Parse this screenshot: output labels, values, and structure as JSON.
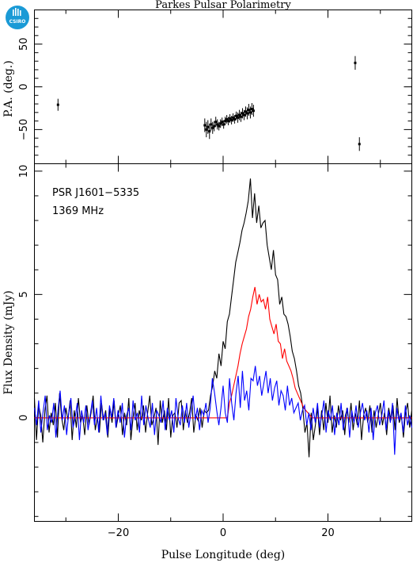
{
  "title": "Parkes Pulsar Polarimetry",
  "logo": {
    "text": "CSIRO",
    "color": "#1a9ad6"
  },
  "colors": {
    "total_intensity": "#000000",
    "linear": "#ff0000",
    "circular": "#0000ff",
    "frame": "#000000"
  },
  "chart_data": [
    {
      "type": "scatter",
      "ylabel": "P.A. (deg.)",
      "xlim": [
        -36,
        36
      ],
      "ylim": [
        -90,
        90
      ],
      "yticks": [
        -50,
        0,
        50
      ],
      "ytick_labels": [
        "−50",
        "0",
        "50"
      ],
      "xticks": [
        -20,
        0,
        20
      ],
      "points": [
        {
          "x": -31.5,
          "y": -21,
          "err": 7
        },
        {
          "x": -3.5,
          "y": -45,
          "err": 8
        },
        {
          "x": -3.2,
          "y": -50,
          "err": 9
        },
        {
          "x": -2.9,
          "y": -47,
          "err": 8
        },
        {
          "x": -2.6,
          "y": -52,
          "err": 9
        },
        {
          "x": -2.3,
          "y": -44,
          "err": 7
        },
        {
          "x": -2.0,
          "y": -48,
          "err": 7
        },
        {
          "x": -1.7,
          "y": -46,
          "err": 6
        },
        {
          "x": -1.4,
          "y": -41,
          "err": 6
        },
        {
          "x": -1.1,
          "y": -44,
          "err": 6
        },
        {
          "x": -0.8,
          "y": -46,
          "err": 5
        },
        {
          "x": -0.5,
          "y": -43,
          "err": 5
        },
        {
          "x": -0.2,
          "y": -41,
          "err": 5
        },
        {
          "x": 0.1,
          "y": -44,
          "err": 5
        },
        {
          "x": 0.4,
          "y": -40,
          "err": 5
        },
        {
          "x": 0.7,
          "y": -38,
          "err": 5
        },
        {
          "x": 1.0,
          "y": -40,
          "err": 5
        },
        {
          "x": 1.3,
          "y": -37,
          "err": 5
        },
        {
          "x": 1.6,
          "y": -39,
          "err": 5
        },
        {
          "x": 1.9,
          "y": -36,
          "err": 5
        },
        {
          "x": 2.2,
          "y": -38,
          "err": 5
        },
        {
          "x": 2.5,
          "y": -34,
          "err": 5
        },
        {
          "x": 2.8,
          "y": -36,
          "err": 6
        },
        {
          "x": 3.1,
          "y": -33,
          "err": 6
        },
        {
          "x": 3.4,
          "y": -35,
          "err": 6
        },
        {
          "x": 3.7,
          "y": -31,
          "err": 6
        },
        {
          "x": 4.0,
          "y": -33,
          "err": 6
        },
        {
          "x": 4.3,
          "y": -29,
          "err": 6
        },
        {
          "x": 4.6,
          "y": -31,
          "err": 7
        },
        {
          "x": 4.9,
          "y": -27,
          "err": 7
        },
        {
          "x": 5.2,
          "y": -30,
          "err": 7
        },
        {
          "x": 5.5,
          "y": -26,
          "err": 7
        },
        {
          "x": 5.8,
          "y": -28,
          "err": 7
        },
        {
          "x": 25.2,
          "y": 28,
          "err": 8
        },
        {
          "x": 26.0,
          "y": -67,
          "err": 8
        }
      ]
    },
    {
      "type": "line",
      "xlabel": "Pulse Longitude (deg)",
      "ylabel": "Flux Density (mJy)",
      "xlim": [
        -36,
        36
      ],
      "ylim": [
        -4.2,
        10.3
      ],
      "xticks": [
        -20,
        0,
        20
      ],
      "xtick_labels": [
        "−20",
        "0",
        "20"
      ],
      "yticks": [
        0,
        5,
        10
      ],
      "ytick_labels": [
        "0",
        "5",
        "10"
      ],
      "annotations": [
        "PSR J1601−5335",
        "1369 MHz"
      ],
      "series": [
        {
          "key": "total_intensity",
          "values": [
            0.8,
            -0.9,
            0.5,
            0.1,
            -1.0,
            0.3,
            0.9,
            -0.6,
            0.2,
            -0.3,
            0.6,
            -0.8,
            1.0,
            0.0,
            -0.5,
            0.4,
            -0.1,
            0.7,
            -0.9,
            0.3,
            -0.4,
            0.8,
            -0.2,
            0.1,
            -0.7,
            0.5,
            -0.3,
            0.2,
            0.9,
            -0.5,
            0.0,
            -0.6,
            0.6,
            -0.1,
            0.3,
            -0.8,
            0.4,
            -0.2,
            0.7,
            -0.4,
            0.1,
            0.5,
            -0.7,
            0.2,
            -0.3,
            0.8,
            -0.9,
            0.0,
            0.6,
            -0.5,
            0.3,
            -0.1,
            0.5,
            -0.6,
            0.2,
            0.9,
            -0.3,
            0.0,
            0.4,
            -1.1,
            0.7,
            -0.2,
            0.3,
            -0.5,
            0.8,
            -0.8,
            0.1,
            0.2,
            -0.4,
            0.6,
            0.7,
            -0.5,
            0.3,
            -0.2,
            0.2,
            0.8,
            -0.6,
            0.1,
            -0.1,
            0.4,
            -0.4,
            0.3,
            0.2,
            0.3,
            0.9,
            1.3,
            1.9,
            1.6,
            2.6,
            2.1,
            3.1,
            2.8,
            3.9,
            4.2,
            4.9,
            5.6,
            6.3,
            6.7,
            7.1,
            7.6,
            7.9,
            8.3,
            8.8,
            9.7,
            8.1,
            9.1,
            7.9,
            8.6,
            7.7,
            7.9,
            8.0,
            7.0,
            6.5,
            6.0,
            6.8,
            5.8,
            5.6,
            4.6,
            4.9,
            4.2,
            4.1,
            3.8,
            3.3,
            2.7,
            2.4,
            1.9,
            1.3,
            1.0,
            0.4,
            -0.6,
            -0.2,
            -1.6,
            0.2,
            -0.9,
            -0.3,
            0.4,
            -0.7,
            0.3,
            -0.5,
            0.6,
            -0.2,
            0.9,
            -0.6,
            0.1,
            -0.4,
            0.5,
            -0.1,
            0.3,
            -0.7,
            0.4,
            -0.2,
            0.6,
            -0.5,
            0.2,
            -0.3,
            0.7,
            -0.9,
            0.1,
            0.4,
            -0.2,
            0.5,
            -0.6,
            0.3,
            -0.4,
            0.1,
            0.6,
            -0.3,
            0.2,
            -0.7,
            0.4,
            -0.1,
            0.5,
            -0.5,
            0.8,
            -0.2,
            0.1,
            -0.8,
            0.2,
            0.6,
            -0.4,
            0.3
          ]
        },
        {
          "key": "linear",
          "values": [
            0.0,
            0.0,
            0.0,
            0.0,
            0.0,
            0.0,
            0.0,
            0.0,
            0.0,
            0.0,
            0.0,
            0.0,
            0.0,
            0.0,
            0.0,
            0.0,
            0.0,
            0.0,
            0.0,
            0.0,
            0.0,
            0.0,
            0.0,
            0.0,
            0.0,
            0.0,
            0.0,
            0.0,
            0.0,
            0.0,
            0.0,
            0.0,
            0.0,
            0.0,
            0.0,
            0.0,
            0.0,
            0.0,
            0.0,
            0.0,
            0.0,
            0.0,
            0.0,
            0.0,
            0.0,
            0.0,
            0.0,
            0.0,
            0.0,
            0.0,
            0.0,
            0.0,
            0.0,
            0.0,
            0.0,
            0.0,
            0.0,
            0.0,
            0.0,
            0.0,
            0.0,
            0.0,
            0.0,
            0.0,
            0.0,
            0.0,
            0.0,
            0.0,
            0.0,
            0.0,
            0.0,
            0.0,
            0.0,
            0.0,
            0.0,
            0.0,
            0.0,
            0.0,
            0.0,
            0.0,
            0.0,
            0.0,
            0.0,
            0.0,
            0.0,
            0.0,
            0.0,
            0.0,
            0.0,
            0.0,
            0.0,
            0.0,
            0.6,
            0.9,
            1.3,
            1.7,
            2.1,
            2.6,
            3.0,
            3.3,
            3.6,
            4.1,
            4.4,
            4.9,
            5.3,
            4.6,
            5.0,
            4.7,
            4.8,
            4.4,
            4.9,
            4.0,
            3.7,
            3.4,
            3.8,
            3.1,
            3.0,
            2.4,
            2.8,
            2.3,
            2.1,
            1.9,
            1.6,
            1.2,
            1.0,
            0.8,
            0.6,
            0.4,
            0.3,
            0.2,
            0.1,
            0.0,
            0.0,
            0.0,
            0.0,
            0.0,
            0.0,
            0.0,
            0.0,
            0.0,
            0.0,
            0.0,
            0.0,
            0.0,
            0.0,
            0.0,
            0.0,
            0.0,
            0.0,
            0.0,
            0.0,
            0.0,
            0.0,
            0.0,
            0.0,
            0.0,
            0.0,
            0.0,
            0.0,
            0.0,
            0.0,
            0.0,
            0.0,
            0.0,
            0.0,
            0.0,
            0.0,
            0.0,
            0.0,
            0.0,
            0.0,
            0.0,
            0.0,
            0.0,
            0.0,
            0.0,
            0.0,
            0.0,
            0.0
          ]
        },
        {
          "key": "circular",
          "values": [
            0.4,
            -0.3,
            0.7,
            -0.6,
            0.2,
            0.9,
            -0.5,
            0.1,
            -0.2,
            0.6,
            -0.8,
            0.3,
            1.1,
            -0.1,
            0.5,
            -0.7,
            0.2,
            0.8,
            -0.4,
            0.0,
            0.6,
            -0.9,
            0.3,
            -0.2,
            0.5,
            -0.5,
            0.1,
            0.7,
            -0.3,
            0.4,
            -0.6,
            0.9,
            -0.1,
            0.2,
            -0.7,
            0.5,
            0.0,
            0.8,
            -0.4,
            0.3,
            -0.2,
            0.6,
            -0.8,
            0.1,
            0.4,
            -0.5,
            0.7,
            -0.1,
            0.2,
            -0.6,
            0.9,
            -0.3,
            0.5,
            0.0,
            -0.4,
            0.6,
            -0.7,
            0.3,
            0.1,
            -0.2,
            0.7,
            -0.5,
            0.4,
            -0.1,
            0.3,
            -0.6,
            0.8,
            0.0,
            -0.3,
            0.5,
            -0.2,
            0.6,
            -0.4,
            0.2,
            0.9,
            -0.1,
            0.4,
            -0.5,
            0.3,
            0.1,
            0.6,
            -0.2,
            0.4,
            1.6,
            1.0,
            0.3,
            -0.3,
            0.4,
            1.3,
            0.2,
            -0.2,
            1.6,
            0.6,
            -0.1,
            1.0,
            1.7,
            0.4,
            1.9,
            0.7,
            1.1,
            0.3,
            1.6,
            1.5,
            2.1,
            1.3,
            1.7,
            0.9,
            1.4,
            1.9,
            1.0,
            1.6,
            0.7,
            1.2,
            1.5,
            0.5,
            1.1,
            0.9,
            0.3,
            1.3,
            0.5,
            0.8,
            0.2,
            0.4,
            0.6,
            -0.1,
            0.3,
            0.5,
            -0.3,
            0.2,
            -0.5,
            0.4,
            -0.2,
            0.6,
            -0.4,
            0.1,
            0.7,
            -0.6,
            0.3,
            -0.1,
            0.5,
            -0.7,
            0.2,
            -0.3,
            0.6,
            -0.5,
            0.1,
            0.4,
            -0.8,
            0.3,
            -0.2,
            0.5,
            -0.4,
            0.2,
            0.6,
            -0.1,
            0.3,
            -0.6,
            0.4,
            -0.9,
            0.2,
            0.5,
            -0.3,
            0.1,
            0.7,
            -0.5,
            0.3,
            -0.2,
            0.6,
            -1.5,
            0.4,
            -0.1,
            0.2,
            -0.6,
            0.5,
            -0.3,
            0.1,
            -0.4
          ]
        }
      ]
    }
  ]
}
